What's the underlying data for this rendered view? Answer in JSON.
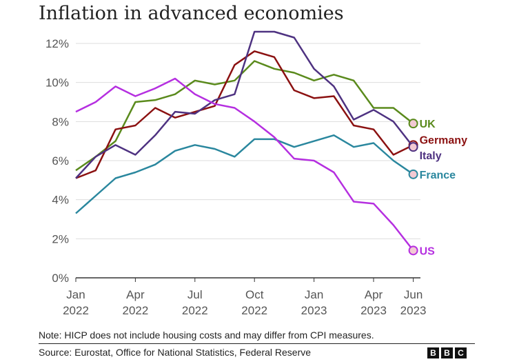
{
  "chart_data": {
    "type": "line",
    "title": "Inflation in advanced economies",
    "x": [
      "Jan 2022",
      "Feb 2022",
      "Mar 2022",
      "Apr 2022",
      "May 2022",
      "Jun 2022",
      "Jul 2022",
      "Aug 2022",
      "Sep 2022",
      "Oct 2022",
      "Nov 2022",
      "Dec 2022",
      "Jan 2023",
      "Feb 2023",
      "Mar 2023",
      "Apr 2023",
      "May 2023",
      "Jun 2023"
    ],
    "x_ticks": [
      {
        "top": "Jan",
        "bottom": "2022"
      },
      {
        "top": "Apr",
        "bottom": "2022"
      },
      {
        "top": "Jul",
        "bottom": "2022"
      },
      {
        "top": "Oct",
        "bottom": "2022"
      },
      {
        "top": "Jan",
        "bottom": "2023"
      },
      {
        "top": "Apr",
        "bottom": "2023"
      },
      {
        "top": "Jun",
        "bottom": "2023"
      }
    ],
    "y_ticks": [
      "0%",
      "2%",
      "4%",
      "6%",
      "8%",
      "10%",
      "12%"
    ],
    "ylim": [
      0,
      12
    ],
    "grid": true,
    "series": [
      {
        "name": "UK",
        "color": "#5a8a1c",
        "values": [
          5.5,
          6.2,
          7.0,
          9.0,
          9.1,
          9.4,
          10.1,
          9.9,
          10.1,
          11.1,
          10.7,
          10.5,
          10.1,
          10.4,
          10.1,
          8.7,
          8.7,
          7.9
        ]
      },
      {
        "name": "Germany",
        "color": "#8b1111",
        "values": [
          5.1,
          5.5,
          7.6,
          7.8,
          8.7,
          8.2,
          8.5,
          8.8,
          10.9,
          11.6,
          11.3,
          9.6,
          9.2,
          9.3,
          7.8,
          7.6,
          6.3,
          6.8
        ]
      },
      {
        "name": "Italy",
        "color": "#4e3281",
        "values": [
          5.1,
          6.2,
          6.8,
          6.3,
          7.3,
          8.5,
          8.4,
          9.1,
          9.4,
          12.6,
          12.6,
          12.3,
          10.7,
          9.8,
          8.1,
          8.6,
          8.0,
          6.7
        ]
      },
      {
        "name": "France",
        "color": "#2a879e",
        "values": [
          3.3,
          4.2,
          5.1,
          5.4,
          5.8,
          6.5,
          6.8,
          6.6,
          6.2,
          7.1,
          7.1,
          6.7,
          7.0,
          7.3,
          6.7,
          6.9,
          6.0,
          5.3
        ]
      },
      {
        "name": "US",
        "color": "#b52fe0",
        "values": [
          8.5,
          9.0,
          9.8,
          9.3,
          9.7,
          10.2,
          9.4,
          8.9,
          8.7,
          8.0,
          7.2,
          6.1,
          6.0,
          5.4,
          3.9,
          3.8,
          2.7,
          1.4
        ]
      }
    ]
  },
  "note": "Note: HICP does not include housing costs and may differ from CPI measures.",
  "source": "Source: Eurostat, Office for National Statistics, Federal Reserve",
  "logo": [
    "B",
    "B",
    "C"
  ]
}
